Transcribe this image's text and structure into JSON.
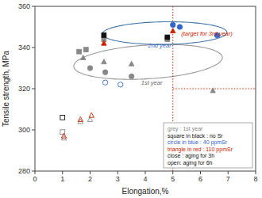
{
  "chart_data": {
    "type": "scatter",
    "title": "",
    "xlabel": "Elongation,%",
    "ylabel": "Tensile strength, MPa",
    "xlim": [
      0,
      8
    ],
    "ylim": [
      280,
      360
    ],
    "xticks": [
      0,
      1,
      2,
      3,
      4,
      5,
      6,
      7,
      8
    ],
    "yticks": [
      280,
      300,
      320,
      340,
      360
    ],
    "series": [
      {
        "color": "#888888",
        "marker": "square",
        "x": [
          1.6,
          1.85,
          2.5,
          4.8
        ],
        "values": [
          338,
          339,
          344,
          344
        ]
      },
      {
        "color": "#888888",
        "marker": "triangle",
        "x": [
          1.75,
          2.5,
          3.5,
          6.45
        ],
        "values": [
          335,
          333,
          332,
          319
        ]
      },
      {
        "color": "#888888",
        "marker": "open-square",
        "x": [
          1.0
        ],
        "values": [
          299
        ]
      },
      {
        "color": "#888888",
        "marker": "open-triangle",
        "x": [
          1.05,
          1.65,
          2.0
        ],
        "values": [
          296,
          304,
          305
        ]
      },
      {
        "color": "#888888",
        "marker": "circle",
        "x": [
          2.0,
          2.55,
          3.5
        ],
        "values": [
          330,
          328,
          326
        ]
      },
      {
        "color": "#111111",
        "marker": "square",
        "x": [
          2.5,
          4.8
        ],
        "values": [
          346,
          345
        ]
      },
      {
        "color": "#111111",
        "marker": "open-square",
        "x": [
          1.0
        ],
        "values": [
          306
        ]
      },
      {
        "color": "#3366cc",
        "marker": "circle",
        "x": [
          5.0,
          5.25,
          6.6
        ],
        "values": [
          351,
          350,
          346
        ]
      },
      {
        "color": "#3366cc",
        "marker": "open-circle",
        "x": [
          2.55,
          3.1
        ],
        "values": [
          323,
          322
        ]
      },
      {
        "color": "#cc2200",
        "marker": "triangle",
        "x": [
          2.5,
          5.0
        ],
        "values": [
          342,
          348
        ]
      },
      {
        "color": "#cc2200",
        "marker": "open-triangle",
        "x": [
          1.05,
          1.65,
          2.05
        ],
        "values": [
          297,
          305,
          307
        ]
      }
    ],
    "ellipses": [
      {
        "center": [
          4.1,
          333
        ],
        "width": 5.2,
        "height": 17,
        "angle": -5,
        "color": "#999999"
      },
      {
        "center": [
          4.7,
          347
        ],
        "width": 4.5,
        "height": 11,
        "angle": -2,
        "color": "#4477aa"
      }
    ],
    "target": {
      "x": 5.0,
      "y": 320,
      "color": "#cc2200"
    },
    "annotations": [
      {
        "text": "(target for 3rd year)",
        "x": 5.3,
        "y": 347,
        "color": "#cc2200"
      },
      {
        "text": "1st year",
        "x": 3.85,
        "y": 323,
        "color": "#666666"
      },
      {
        "text": "2nd year",
        "x": 4.1,
        "y": 341,
        "color": "#3366cc"
      }
    ],
    "notes": [
      {
        "text": "grey : 1st year",
        "color": "#888888"
      },
      {
        "text": "square in black : no Sr",
        "color": "#111111"
      },
      {
        "text": "circle in blue : 40 ppmSr",
        "color": "#3366cc"
      },
      {
        "text": "triangle in red : 110 ppmSr",
        "color": "#cc2200"
      },
      {
        "text": "close : aging for 3h",
        "color": "#111111"
      },
      {
        "text": "open: aging for 6h",
        "color": "#111111"
      }
    ]
  }
}
